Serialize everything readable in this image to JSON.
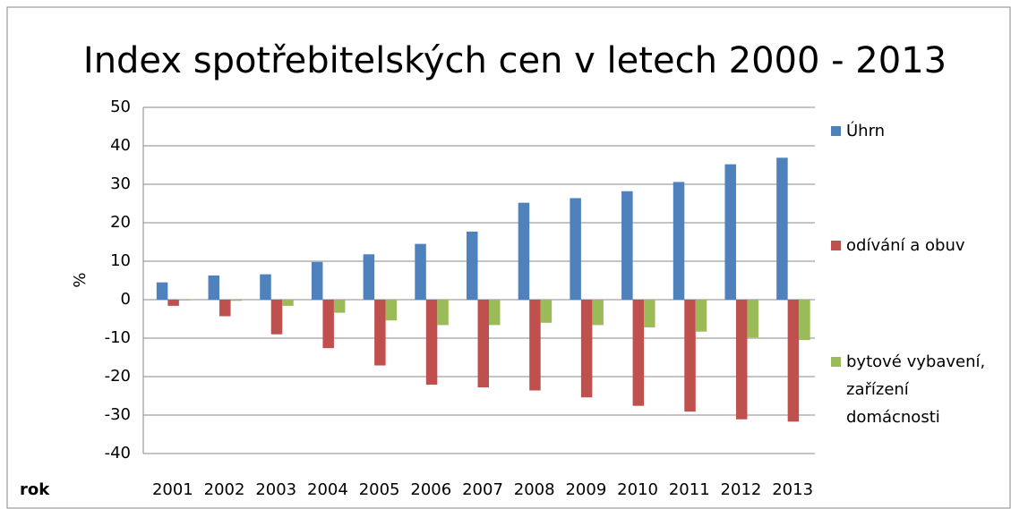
{
  "chart_data": {
    "type": "bar",
    "title": "Index spotřebitelských cen v letech 2000 - 2013",
    "y_label": "%",
    "x_label": "rok",
    "categories": [
      "2001",
      "2002",
      "2003",
      "2004",
      "2005",
      "2006",
      "2007",
      "2008",
      "2009",
      "2010",
      "2011",
      "2012",
      "2013"
    ],
    "series": [
      {
        "name": "Úhrn",
        "color": "#4f81bd",
        "values": [
          4.5,
          6.3,
          6.6,
          9.8,
          11.8,
          14.5,
          17.7,
          25.2,
          26.4,
          28.2,
          30.6,
          35.2,
          36.9
        ]
      },
      {
        "name": "odívání a obuv",
        "color": "#c0504d",
        "values": [
          -1.6,
          -4.3,
          -9.0,
          -12.6,
          -17.1,
          -22.1,
          -22.8,
          -23.6,
          -25.4,
          -27.6,
          -29.1,
          -31.1,
          -31.7
        ]
      },
      {
        "name": "bytové vybavení, zařízení domácnosti",
        "color": "#9bbb59",
        "values": [
          -0.2,
          -0.3,
          -1.6,
          -3.4,
          -5.4,
          -6.6,
          -6.6,
          -6.0,
          -6.6,
          -7.2,
          -8.3,
          -9.8,
          -10.5
        ]
      }
    ],
    "ylim": [
      -40,
      50
    ],
    "yticks": [
      -40,
      -30,
      -20,
      -10,
      0,
      10,
      20,
      30,
      40,
      50
    ],
    "grid": true,
    "legend": "right"
  }
}
